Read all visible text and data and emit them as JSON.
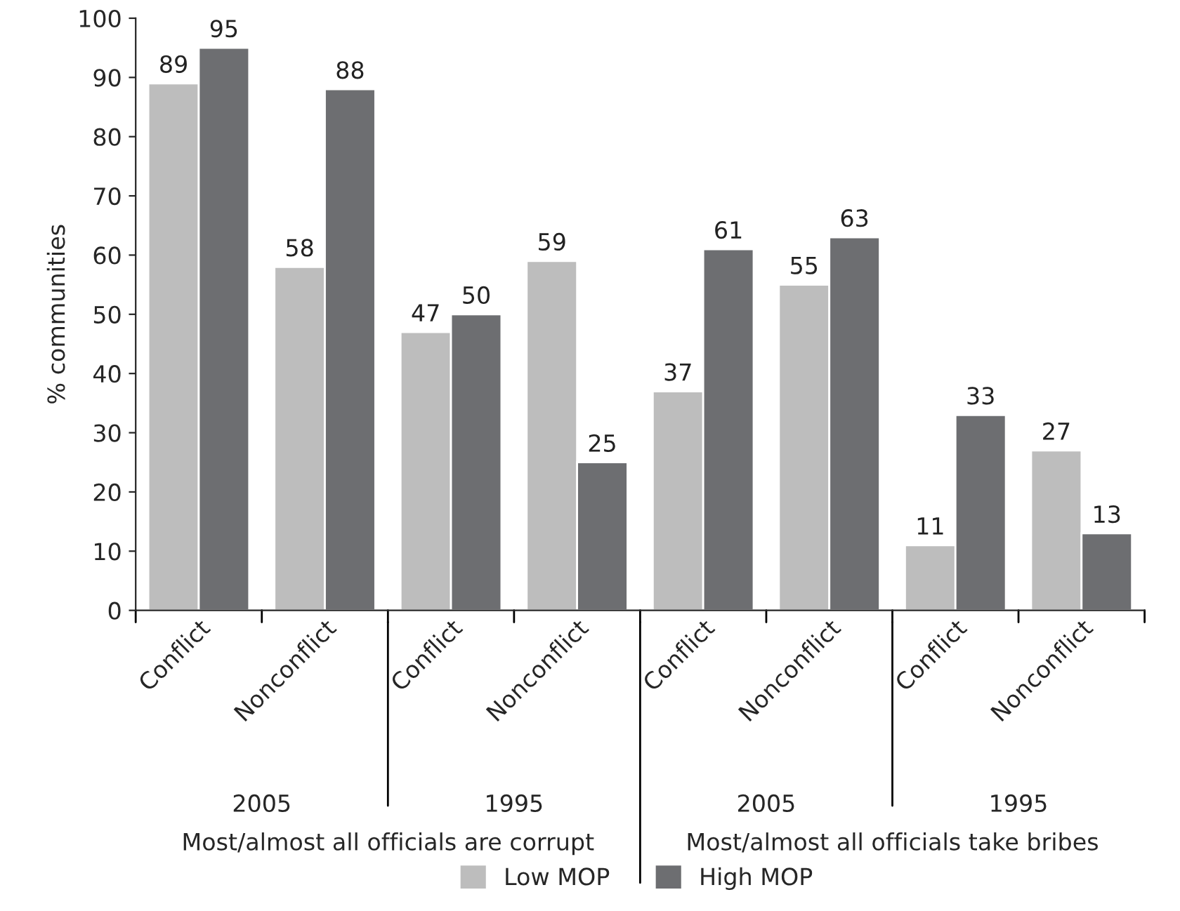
{
  "chart_data": {
    "type": "bar",
    "ylabel": "% communities",
    "categories": [
      "Conflict",
      "Nonconflict",
      "Conflict",
      "Nonconflict",
      "Conflict",
      "Nonconflict",
      "Conflict",
      "Nonconflict"
    ],
    "series": [
      {
        "name": "Low MOP",
        "color": "#bdbdbd",
        "values": [
          89,
          58,
          47,
          59,
          37,
          55,
          11,
          27
        ]
      },
      {
        "name": "High MOP",
        "color": "#6d6e71",
        "values": [
          95,
          88,
          50,
          25,
          61,
          63,
          33,
          13
        ]
      }
    ],
    "ylim": [
      0,
      100
    ],
    "yticks": [
      0,
      10,
      20,
      30,
      40,
      50,
      60,
      70,
      80,
      90,
      100
    ],
    "data_labels": true,
    "legend": "bottom",
    "grid": false,
    "annotations": [
      "2005",
      "1995",
      "2005",
      "1995",
      "Most/almost all officials are corrupt",
      "Most/almost all officials take bribes"
    ]
  }
}
